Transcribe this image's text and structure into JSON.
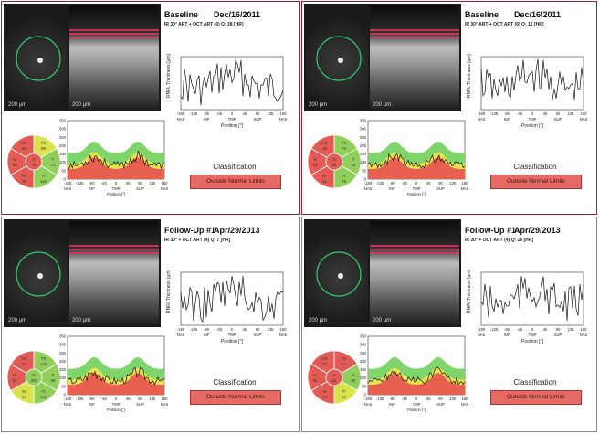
{
  "common": {
    "scale_label": "200 µm",
    "pos_label": "Position [°]",
    "rnfl_label": "RNFL Thickness [µm]",
    "x_ticks": [
      "-180",
      "-135",
      "-90",
      "-45",
      "0",
      "45",
      "90",
      "135",
      "180"
    ],
    "x_regions": [
      "NAS",
      "INF",
      "TMP",
      "SUP",
      "NAS"
    ],
    "y_ticks": [
      "0",
      "50",
      "100",
      "150",
      "200",
      "250",
      "300",
      "350"
    ],
    "classification": "Classification",
    "result": "Outside Normal Limits"
  },
  "panels": [
    {
      "title": "Baseline",
      "date": "Dec/16/2011",
      "sub": "IR 30° ART + OCT ART (6) Q: 28 [HR]",
      "sectors": {
        "NS": "93",
        "TS": "99",
        "N": "68",
        "G": "76",
        "T": "73",
        "NI": "38",
        "TI": "110"
      },
      "sector_colors": {
        "NS": "#e45b55",
        "TS": "#d9e24a",
        "N": "#e45b55",
        "G": "#e45b55",
        "T": "#8fcf5a",
        "NI": "#e45b55",
        "TI": "#8fcf5a"
      }
    },
    {
      "title": "Baseline",
      "date": "Dec/16/2011",
      "sub": "IR 30° ART + OCT ART (6) Q: 12 [HR]",
      "sectors": {
        "NS": "30",
        "TS": "73",
        "N": "19",
        "G": "55",
        "T": "61",
        "NI": "41",
        "TI": "79"
      },
      "sector_colors": {
        "NS": "#e45b55",
        "TS": "#8fcf5a",
        "N": "#e45b55",
        "G": "#e45b55",
        "T": "#8fcf5a",
        "NI": "#e45b55",
        "TI": "#8fcf5a"
      }
    },
    {
      "title": "Follow-Up #1",
      "date": "Apr/29/2013",
      "sub": "IR 30° + OCT ART (4) Q: 7 [HR]",
      "sectors": {
        "NS": "52",
        "TS": "140",
        "N": "53",
        "G": "102",
        "T": "96",
        "NI": "64",
        "TI": "134"
      },
      "sector_colors": {
        "NS": "#e45b55",
        "TS": "#8fcf5a",
        "N": "#e45b55",
        "G": "#8fcf5a",
        "T": "#8fcf5a",
        "NI": "#d9e24a",
        "TI": "#8fcf5a"
      }
    },
    {
      "title": "Follow-Up #1",
      "date": "Apr/29/2013",
      "sub": "IR 30° + OCT ART (4) Q: 18 [HR]",
      "sectors": {
        "NS": "32",
        "TS": "52",
        "N": "25",
        "G": "51",
        "T": "60",
        "NI": "43",
        "TI": "63"
      },
      "sector_colors": {
        "NS": "#e45b55",
        "TS": "#e45b55",
        "N": "#e45b55",
        "G": "#e45b55",
        "T": "#8fcf5a",
        "NI": "#e45b55",
        "TI": "#d9e24a"
      }
    }
  ]
}
